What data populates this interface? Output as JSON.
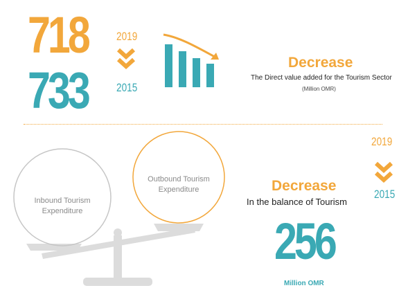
{
  "top": {
    "value_2019": "718",
    "value_2015": "733",
    "year_2019": "2019",
    "year_2015": "2015",
    "headline": "Decrease",
    "caption": "The Direct value added for the Tourism Sector",
    "unit": "(Million OMR)"
  },
  "bottom": {
    "inbound_label": "Inbound Tourism Expenditure",
    "outbound_label": "Outbound Tourism Expenditure",
    "headline": "Decrease",
    "caption": "In the balance of Tourism",
    "value": "256",
    "unit": "Million OMR",
    "year_2019": "2019",
    "year_2015": "2015"
  },
  "colors": {
    "orange": "#f2a73b",
    "teal": "#3aa9b4",
    "grey": "#cfcfcf"
  },
  "icons": {
    "chevron": "double-chevron-down-icon",
    "chart": "declining-bar-chart-icon",
    "scale": "balance-scale-icon"
  }
}
